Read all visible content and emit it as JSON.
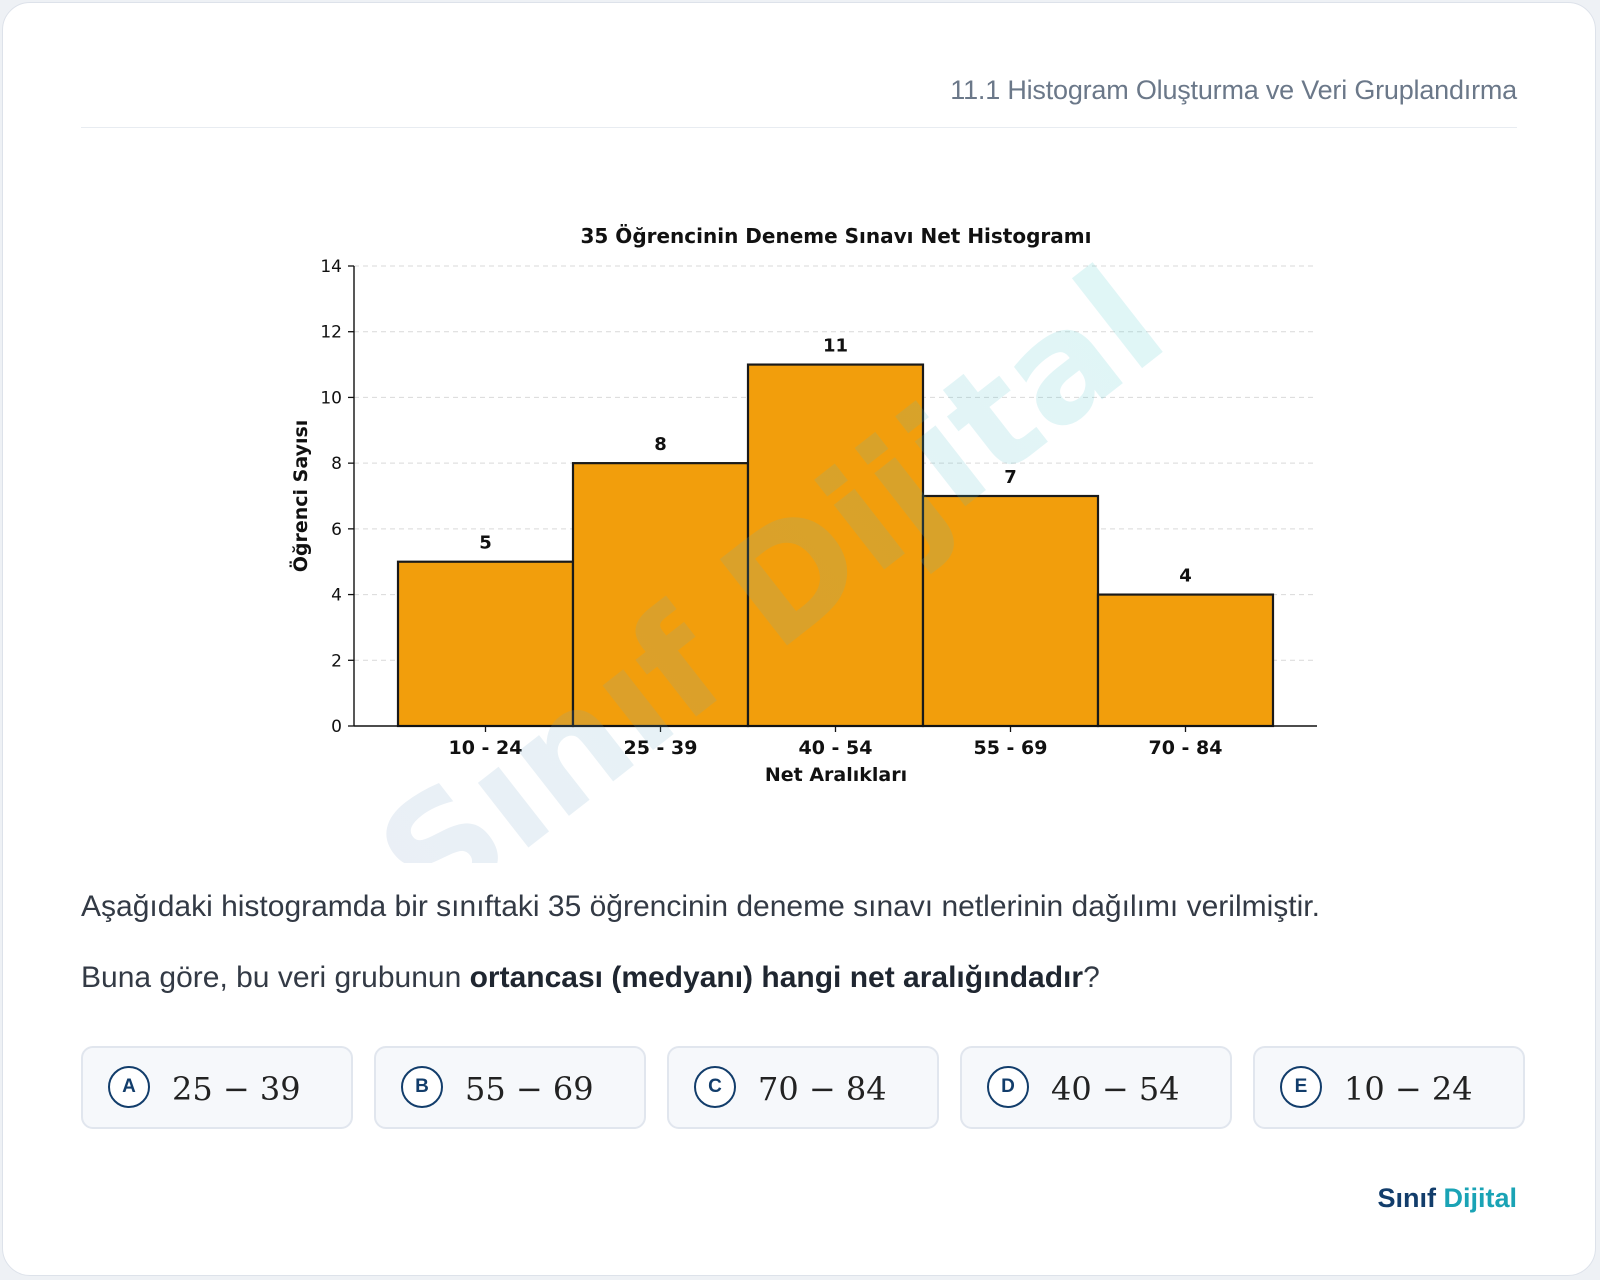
{
  "header": {
    "title": "11.1 Histogram Oluşturma ve Veri Gruplandırma"
  },
  "chart_data": {
    "type": "bar",
    "title": "35 Öğrencinin Deneme Sınavı Net Histogramı",
    "xlabel": "Net Aralıkları",
    "ylabel": "Öğrenci Sayısı",
    "categories": [
      "10 - 24",
      "25 - 39",
      "40 - 54",
      "55 - 69",
      "70 - 84"
    ],
    "values": [
      5,
      8,
      11,
      7,
      4
    ],
    "ylim": [
      0,
      14
    ],
    "yticks": [
      0,
      2,
      4,
      6,
      8,
      10,
      12,
      14
    ],
    "grid": "horizontal-dashed",
    "data_labels": true,
    "bar_color": "#f29e0c",
    "bar_edge_color": "#1a1a1a"
  },
  "watermark": {
    "text": "Sınıf Dijital"
  },
  "question": {
    "intro": "Aşağıdaki histogramda bir sınıftaki 35 öğrencinin deneme sınavı netlerinin dağılımı verilmiştir.",
    "prompt_prefix": "Buna göre, bu veri grubunun ",
    "prompt_bold": "ortancası (medyanı) hangi net aralığındadır",
    "prompt_suffix": "?"
  },
  "options": [
    {
      "letter": "A",
      "value": "25 − 39"
    },
    {
      "letter": "B",
      "value": "55 − 69"
    },
    {
      "letter": "C",
      "value": "70 − 84"
    },
    {
      "letter": "D",
      "value": "40 − 54"
    },
    {
      "letter": "E",
      "value": "10 − 24"
    }
  ],
  "brand": {
    "part1": "Sınıf ",
    "part2": "Dijital",
    "color_primary": "#123d6b",
    "color_accent": "#1aa3b5"
  }
}
